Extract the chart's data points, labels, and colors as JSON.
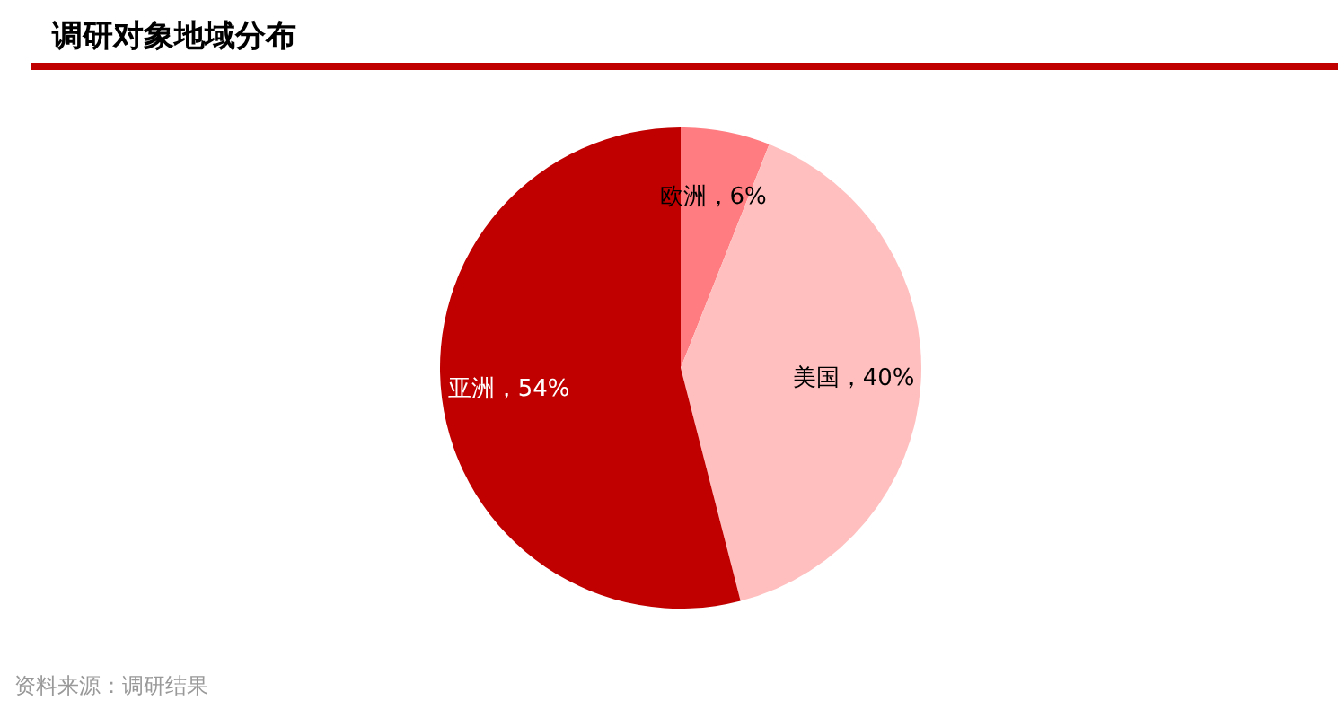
{
  "chart_data": {
    "type": "pie",
    "title": "调研对象地域分布",
    "categories": [
      "欧洲",
      "美国",
      "亚洲"
    ],
    "values": [
      6,
      40,
      54
    ],
    "colors": [
      "#ff7c80",
      "#ffbfbf",
      "#c00000"
    ],
    "value_labels": [
      "6%",
      "40%",
      "54%"
    ],
    "annotations": [
      "资料来源：调研结果"
    ],
    "legend": false
  }
}
